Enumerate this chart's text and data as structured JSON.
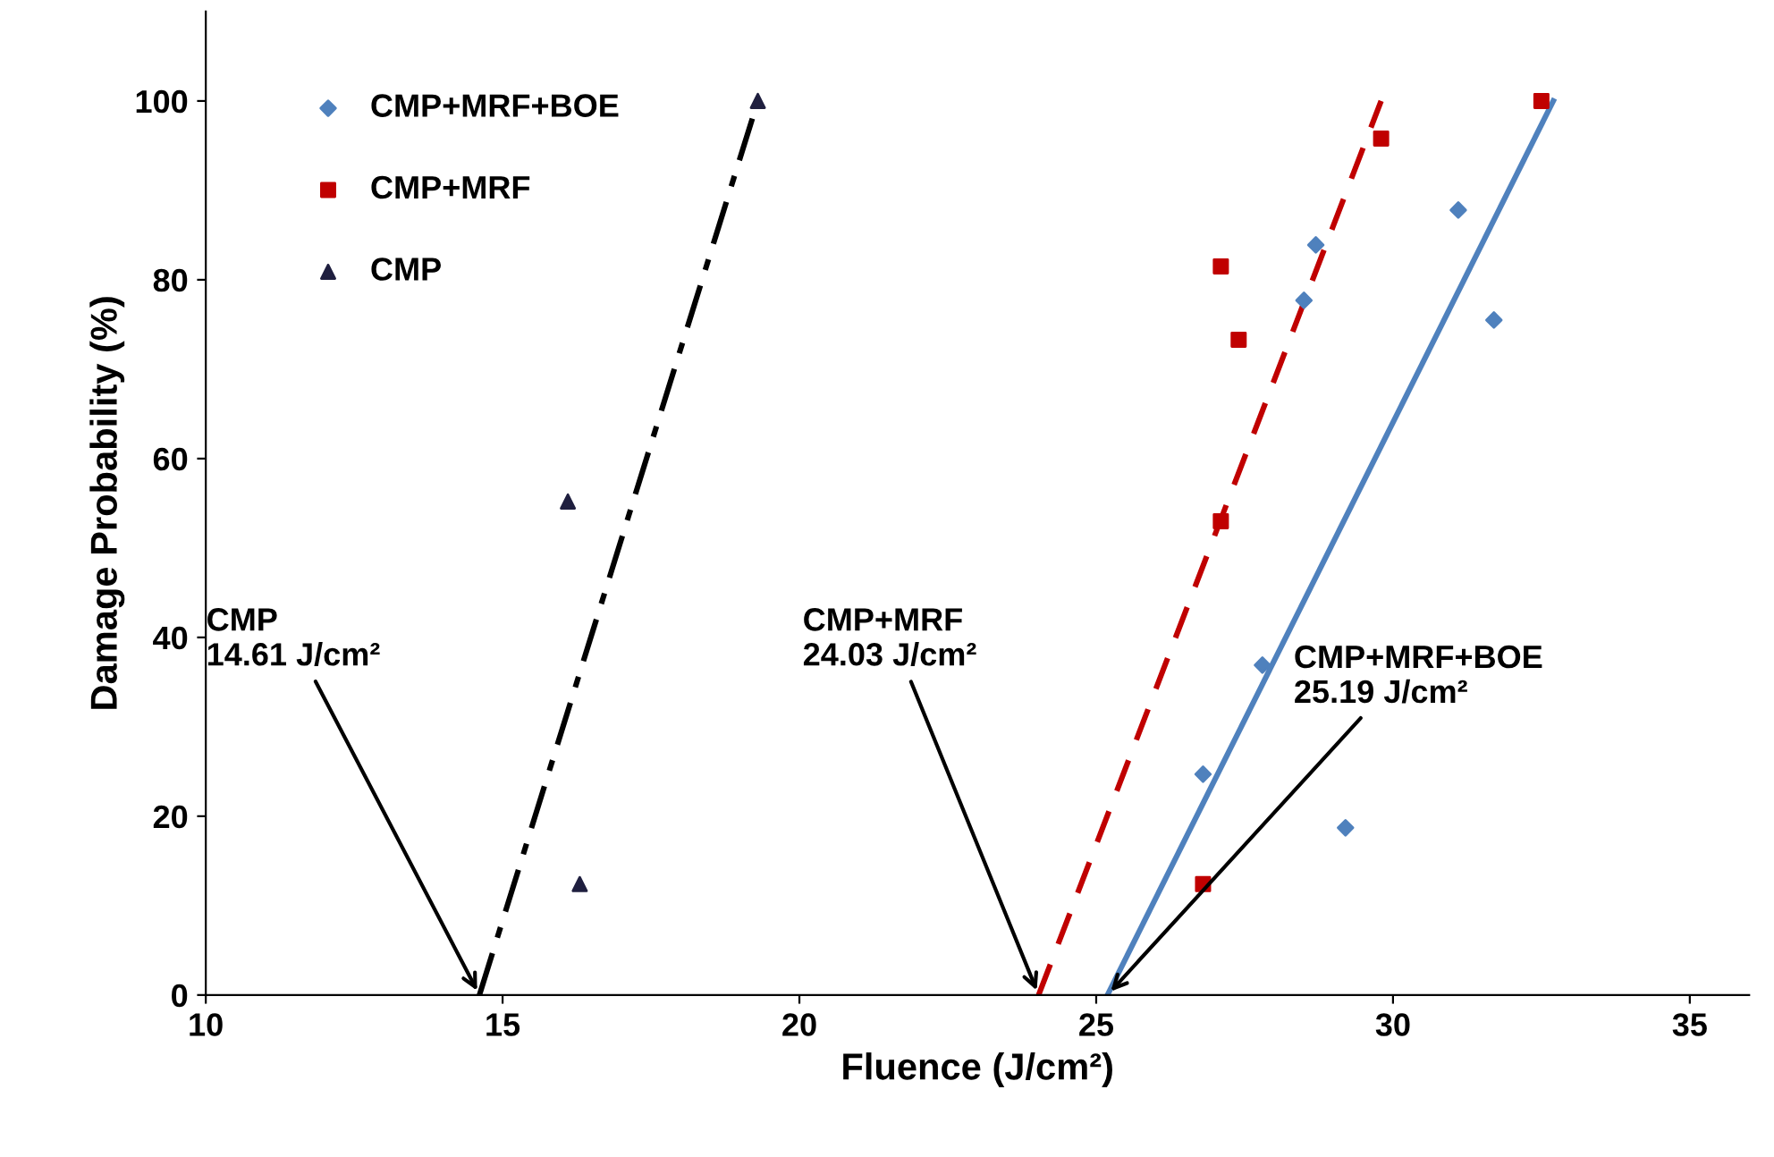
{
  "chart_data": {
    "type": "scatter",
    "xlabel": "Fluence (J/cm²)",
    "ylabel": "Damage Probability (%)",
    "xlim": [
      10,
      36
    ],
    "ylim": [
      0,
      110
    ],
    "xticks": [
      10,
      15,
      20,
      25,
      30,
      35
    ],
    "yticks": [
      0,
      20,
      40,
      60,
      80,
      100
    ],
    "grid": false,
    "legend": "top left",
    "series": [
      {
        "name": "CMP+MRF+BOE",
        "color": "#4f81bd",
        "marker": "diamond",
        "x": [
          26.8,
          27.8,
          29.2,
          28.5,
          28.7,
          31.1,
          31.7
        ],
        "values": [
          24.7,
          36.9,
          18.7,
          77.7,
          83.9,
          87.8,
          75.5
        ]
      },
      {
        "name": "CMP+MRF",
        "color": "#c00000",
        "marker": "square",
        "x": [
          26.8,
          27.1,
          27.1,
          27.4,
          29.8,
          32.5
        ],
        "values": [
          12.4,
          53,
          81.5,
          73.3,
          95.8,
          100
        ]
      },
      {
        "name": "CMP",
        "color": "#1f1f3f",
        "marker": "triangle",
        "x": [
          16.1,
          16.3,
          19.3
        ],
        "values": [
          55.2,
          12.4,
          100
        ]
      },
      {
        "type": "line",
        "color": "#000000",
        "line_style": "dashdot",
        "x": [
          14.61,
          19.3
        ],
        "values": [
          0,
          100
        ]
      },
      {
        "type": "line",
        "color": "#c00000",
        "line_style": "dashed",
        "x": [
          24.03,
          29.8
        ],
        "values": [
          0,
          100
        ]
      },
      {
        "type": "line",
        "color": "#4f81bd",
        "line_style": "solid",
        "x": [
          25.19,
          32.7
        ],
        "values": [
          0,
          100
        ]
      }
    ],
    "annotations": [
      {
        "text": "CMP\n14.61 J/cm²",
        "x": 14.61,
        "y": 0
      },
      {
        "text": "CMP+MRF\n24.03 J/cm²",
        "x": 24.03,
        "y": 0
      },
      {
        "text": "CMP+MRF+BOE\n25.19 J/cm²",
        "x": 25.19,
        "y": 0
      }
    ]
  }
}
